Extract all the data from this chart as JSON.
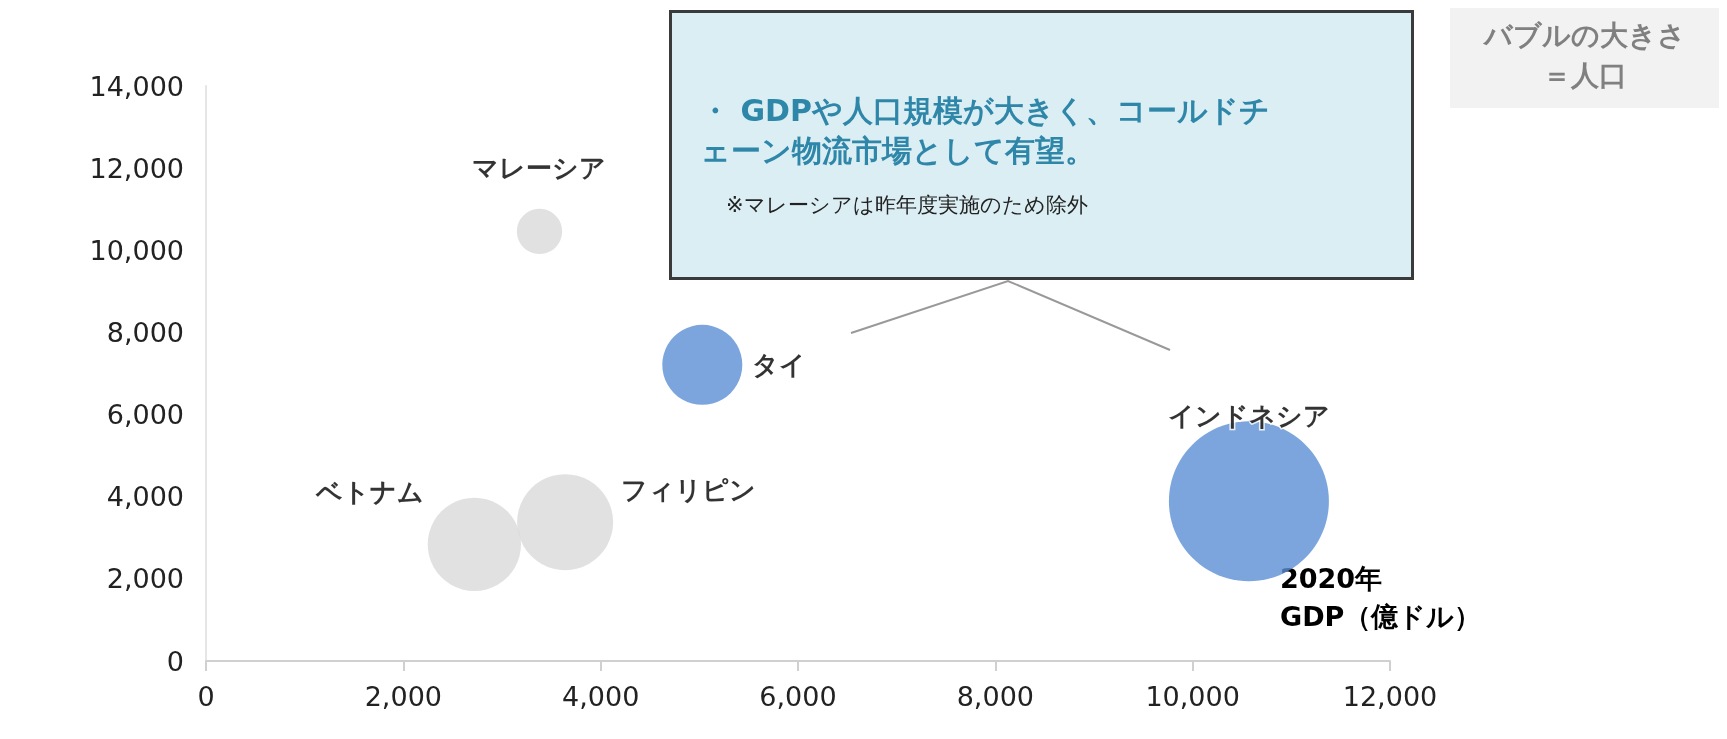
{
  "chart_data": {
    "type": "bubble",
    "xlabel": "2020年\nGDP（億ドル）",
    "x": [
      3380,
      5030,
      10570,
      3640,
      2720
    ],
    "values": [
      10460,
      7210,
      3890,
      3380,
      2840
    ],
    "sizes": [
      0.08,
      0.25,
      1,
      0.36,
      0.34
    ],
    "colors": [
      "#d9d9d9",
      "#5b8fd6",
      "#5b8fd6",
      "#d9d9d9",
      "#d9d9d9"
    ],
    "xlim": [
      0,
      12000
    ],
    "xticks": [
      0,
      {
        "value": 2000,
        "label": "2,000"
      },
      {
        "value": 4000,
        "label": "4,000"
      },
      {
        "value": 6000,
        "label": "6,000"
      },
      {
        "value": 8000,
        "label": "8,000"
      },
      {
        "value": 10000,
        "label": "10,000"
      },
      {
        "value": 12000,
        "label": "12,000"
      }
    ],
    "ylim": [
      0,
      14000
    ],
    "yticks": [
      0,
      {
        "value": 2000,
        "label": "2,000"
      },
      {
        "value": 4000,
        "label": "4,000"
      },
      {
        "value": 6000,
        "label": "6,000"
      },
      {
        "value": 8000,
        "label": "8,000"
      },
      {
        "value": 10000,
        "label": "10,000"
      },
      {
        "value": 12000,
        "label": "12,000"
      },
      {
        "value": 14000,
        "label": "14,000"
      }
    ],
    "grid": false,
    "annotations": [
      {
        "text": "マレーシア",
        "x": 3380,
        "y": 10460
      },
      {
        "text": "タイ",
        "x": 5030,
        "y": 7210
      },
      {
        "text": "インドネシア",
        "x": 10570,
        "y": 3890
      },
      {
        "text": "フィリピン",
        "x": 3640,
        "y": 3380
      },
      {
        "text": "ベトナム",
        "x": 2720,
        "y": 2840
      },
      "・ GDPや人口規模が大きく、コールドチェーン物流市場として有望。",
      "※マレーシアは昨年度実施のため除外",
      "バブルの大きさ",
      "＝人口"
    ]
  }
}
